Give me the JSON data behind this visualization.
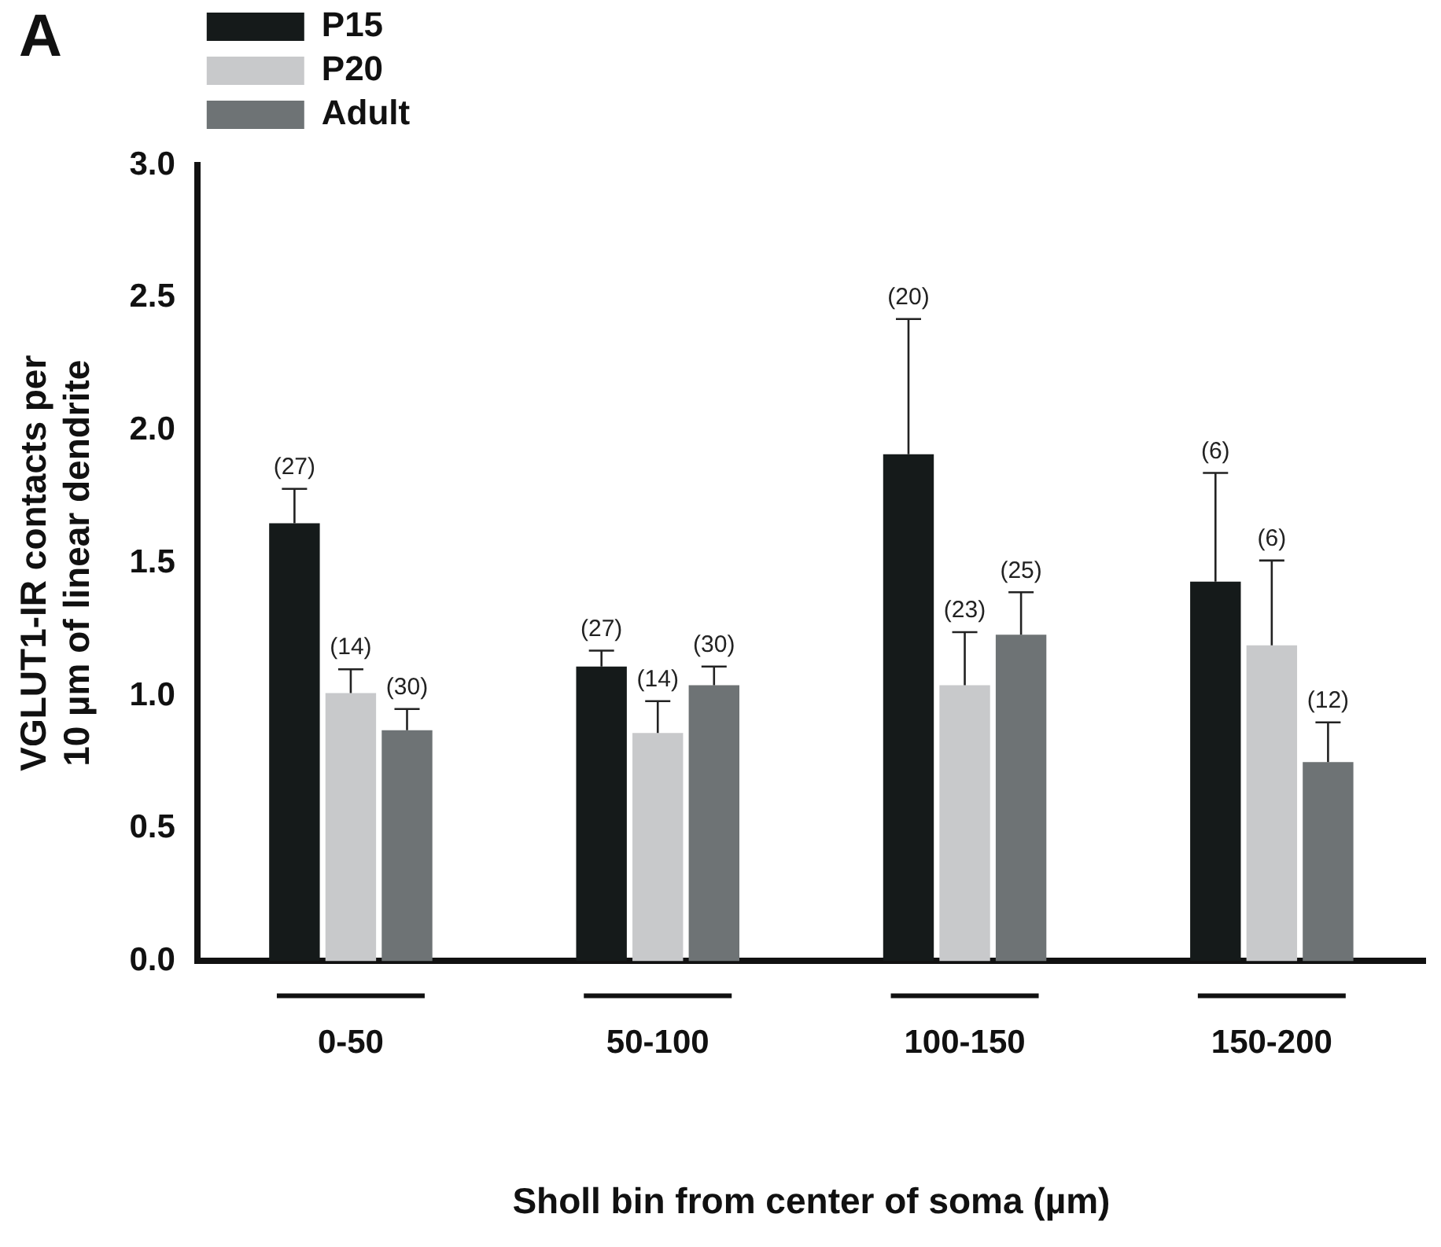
{
  "chart_data": {
    "type": "bar",
    "title": "A",
    "xlabel": "Sholl bin from center of soma (µm)",
    "ylabel": "VGLUT1-IR contacts per\n10 µm of linear dendrite",
    "categories": [
      "0-50",
      "50-100",
      "100-150",
      "150-200"
    ],
    "series": [
      {
        "name": "P15",
        "color": "#151a1a",
        "values": [
          1.65,
          1.11,
          1.91,
          1.43
        ],
        "errors": [
          [
            1.65,
            1.78
          ],
          [
            1.11,
            1.17
          ],
          [
            1.91,
            2.42
          ],
          [
            1.43,
            1.84
          ]
        ]
      },
      {
        "name": "P20",
        "color": "#c8c9cb",
        "values": [
          1.01,
          0.86,
          1.04,
          1.19
        ],
        "errors": [
          [
            1.01,
            1.1
          ],
          [
            0.86,
            0.98
          ],
          [
            1.04,
            1.24
          ],
          [
            1.19,
            1.51
          ]
        ]
      },
      {
        "name": "Adult",
        "color": "#6e7375",
        "values": [
          0.87,
          1.04,
          1.23,
          0.75
        ],
        "errors": [
          [
            0.87,
            0.95
          ],
          [
            1.04,
            1.11
          ],
          [
            1.23,
            1.39
          ],
          [
            0.75,
            0.9
          ]
        ]
      }
    ],
    "annotations": [
      "(27)",
      "(14)",
      "(30)",
      "(27)",
      "(14)",
      "(30)",
      "(20)",
      "(23)",
      "(25)",
      "(6)",
      "(6)",
      "(12)"
    ],
    "ylim": [
      0,
      3
    ],
    "yticks": [
      {
        "value": 0,
        "label": "0.0"
      },
      {
        "value": 0.5,
        "label": "0.5"
      },
      {
        "value": 1,
        "label": "1.0"
      },
      {
        "value": 1.5,
        "label": "1.5"
      },
      {
        "value": 2,
        "label": "2.0"
      },
      {
        "value": 2.5,
        "label": "2.5"
      },
      {
        "value": 3,
        "label": "3.0"
      }
    ],
    "legend": "top left"
  }
}
